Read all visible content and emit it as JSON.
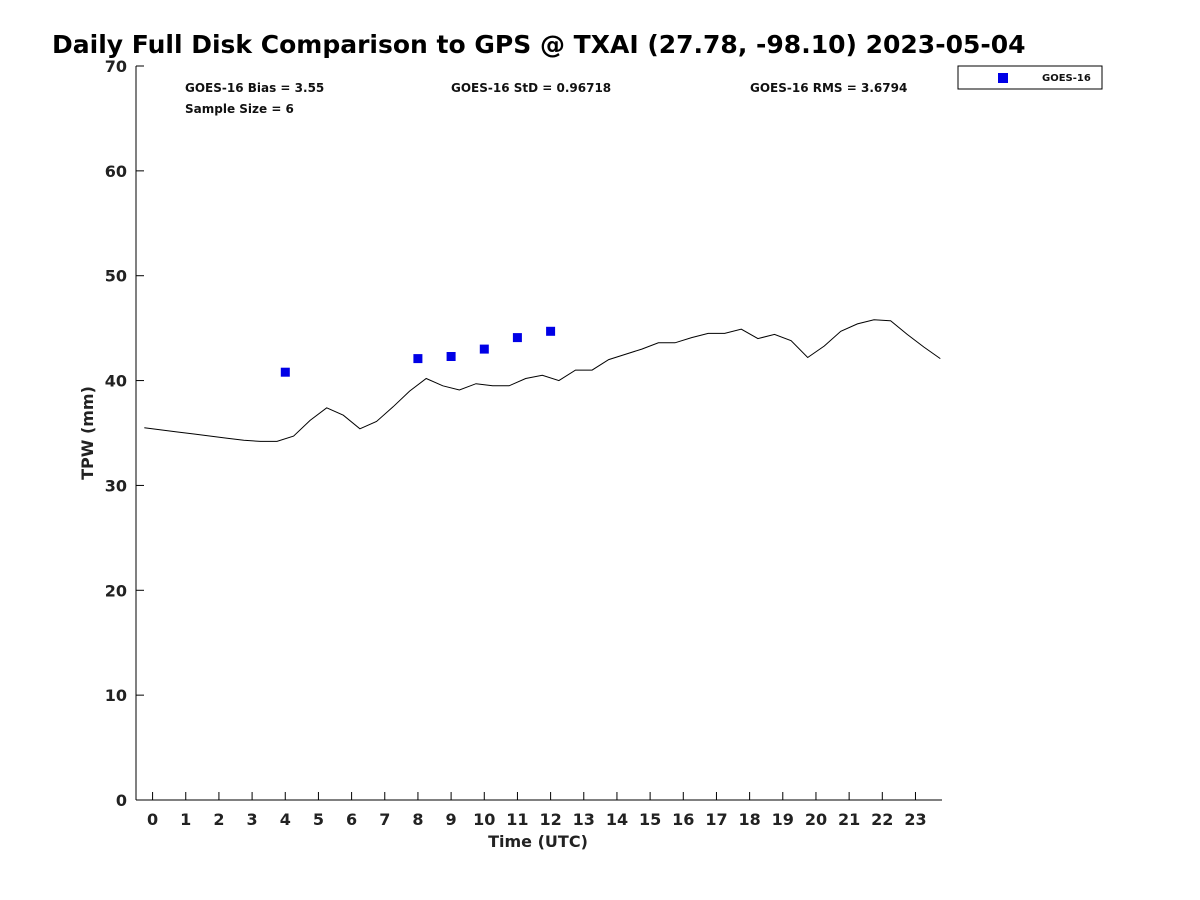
{
  "chart_data": {
    "type": "scatter",
    "title": "Daily Full Disk Comparison to GPS @ TXAI (27.78, -98.10) 2023-05-04",
    "xlabel": "Time (UTC)",
    "ylabel": "TPW (mm)",
    "xlim": [
      -0.5,
      23.8
    ],
    "ylim": [
      0,
      70
    ],
    "x_ticks": [
      0,
      1,
      2,
      3,
      4,
      5,
      6,
      7,
      8,
      9,
      10,
      11,
      12,
      13,
      14,
      15,
      16,
      17,
      18,
      19,
      20,
      21,
      22,
      23
    ],
    "y_ticks": [
      0,
      10,
      20,
      30,
      40,
      50,
      60,
      70
    ],
    "grid": false,
    "legend_position": "top-right",
    "stats": {
      "bias": "GOES-16 Bias = 3.55",
      "std": "GOES-16 StD = 0.96718",
      "rms": "GOES-16 RMS = 3.6794",
      "sample": "Sample Size = 6"
    },
    "series": [
      {
        "name": "GOES-16",
        "kind": "markers",
        "color": "#0000e6",
        "marker": "square",
        "x": [
          4.0,
          8.0,
          9.0,
          10.0,
          11.0,
          12.0
        ],
        "y": [
          40.8,
          42.1,
          42.3,
          43.0,
          44.1,
          44.7
        ]
      },
      {
        "kind": "line",
        "color": "#000000",
        "x": [
          -0.25,
          0.25,
          0.75,
          1.25,
          1.75,
          2.25,
          2.75,
          3.25,
          3.75,
          4.25,
          4.75,
          5.25,
          5.75,
          6.25,
          6.75,
          7.25,
          7.75,
          8.25,
          8.75,
          9.25,
          9.75,
          10.25,
          10.75,
          11.25,
          11.75,
          12.25,
          12.75,
          13.25,
          13.75,
          14.25,
          14.75,
          15.25,
          15.75,
          16.25,
          16.75,
          17.25,
          17.75,
          18.25,
          18.75,
          19.25,
          19.75,
          20.25,
          20.75,
          21.25,
          21.75,
          22.25,
          22.75,
          23.25,
          23.75
        ],
        "y": [
          35.5,
          35.3,
          35.1,
          34.9,
          34.7,
          34.5,
          34.3,
          34.2,
          34.2,
          34.7,
          36.2,
          37.4,
          36.7,
          35.4,
          36.1,
          37.5,
          39.0,
          40.2,
          39.5,
          39.1,
          39.7,
          39.5,
          39.5,
          40.2,
          40.5,
          40.0,
          41.0,
          41.0,
          42.0,
          42.5,
          43.0,
          43.6,
          43.6,
          44.1,
          44.5,
          44.5,
          44.9,
          44.0,
          44.4,
          43.8,
          42.2,
          43.3,
          44.7,
          45.4,
          45.8,
          45.7,
          44.4,
          43.2,
          42.1
        ]
      }
    ]
  }
}
